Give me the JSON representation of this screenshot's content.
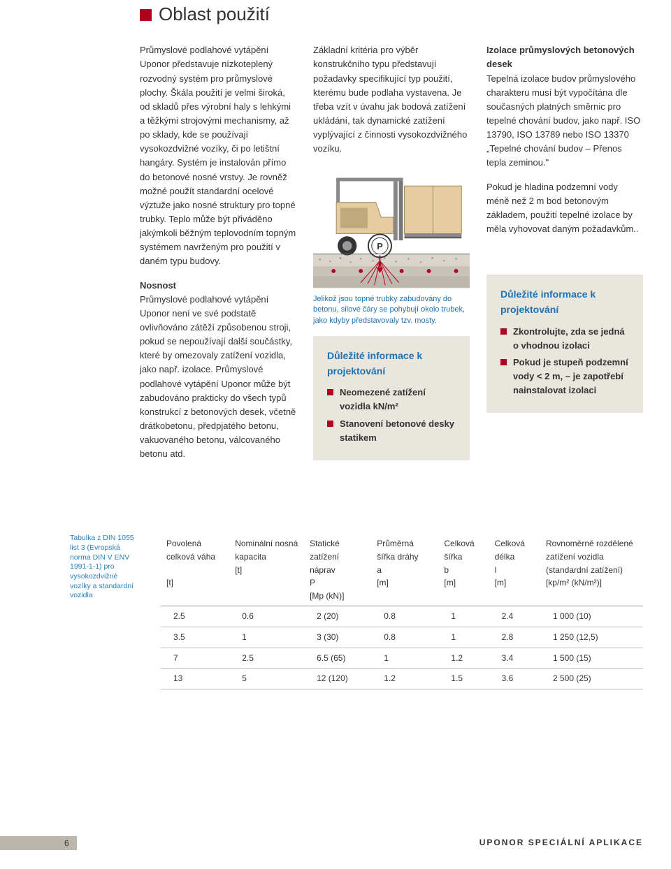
{
  "colors": {
    "accent": "#b2001f",
    "link_blue": "#1c72b3",
    "box_bg": "#e9e6de",
    "page_tab_bg": "#bcb7ac"
  },
  "header": {
    "title": "Oblast použití"
  },
  "col1": {
    "p1": "Průmyslové podlahové vytápění Uponor představuje nízkoteplený rozvodný systém pro průmyslové plochy. Škála použití je velmi široká, od skladů přes výrobní haly s lehkými a těžkými strojovými mechanismy, až po sklady, kde se používají vysokozdvižné vozíky, či po letištní hangáry. Systém je instalován přímo do betonové nosné vrstvy. Je rovněž možné použít standardní ocelové výztuže jako nosné struktury pro topné trubky. Teplo může být přiváděno jakýmkoli běžným teplovodním topným systémem navrženým pro použití v daném typu budovy.",
    "h2": "Nosnost",
    "p2": "Průmyslové podlahové vytápění Uponor není ve své podstatě ovlivňováno zátěží způsobenou stroji, pokud se nepoužívají další součástky, které by omezovaly zatížení vozidla, jako např. izolace. Průmyslové podlahové vytápění Uponor může být zabudováno prakticky do všech typů konstrukcí z betonových desek, včetně drátkobetonu, předpjatého betonu, vakuovaného betonu, válcovaného betonu atd."
  },
  "col2": {
    "p1": "Základní kritéria pro výběr konstrukčního typu představují požadavky specifikující typ použití, kterému bude podlaha vystavena. Je třeba vzít v úvahu jak bodová zatížení ukládání, tak dynamické zatížení vyplývající z činnosti vysokozdvižného vozíku.",
    "caption": "Jelikož jsou topné trubky zabudovány do betonu, silové čáry se pohybují okolo trubek, jako kdyby představovaly tzv. mosty.",
    "info_title": "Důležité informace k projektování",
    "info_items": [
      "Neomezené zatížení vozidla kN/m²",
      "Stanovení betonové desky statikem"
    ]
  },
  "col3": {
    "h1": "Izolace průmyslových betonových desek",
    "p1": "Tepelná izolace budov průmyslového charakteru musí být vypočítána dle současných platných směrnic pro tepelné chování budov, jako např. ISO 13790, ISO 13789 nebo ISO 13370 „Tepelné chování budov – Přenos tepla zeminou.\"",
    "p2": "Pokud je hladina podzemní vody méně než 2 m bod betonovým základem, použití tepelné izolace by měla vyhovovat daným požadavkům..",
    "info_title": "Důležité informace k projektování",
    "info_items": [
      "Zkontrolujte, zda se jedná o vhodnou izolaci",
      "Pokud je stupeň podzemní vody < 2 m, – je zapotřebí nainstalovat izolaci"
    ]
  },
  "figure": {
    "forklift_body": "#e6cd9f",
    "forklift_panel": "#c0aa7b",
    "pipe_color": "#b2001f",
    "ground_color": "#ddd9d0",
    "floor_line": "#999",
    "below_pattern": "#bdb8ad"
  },
  "table": {
    "note": "Tabulka z DIN 1055 list 3 (Evropská norma DIN V ENV 1991-1-1) pro vysokozdvižné vozíky a standardní vozidla",
    "columns": [
      {
        "h1": "Povolená celková váha",
        "h2": "",
        "h3": "[t]"
      },
      {
        "h1": "Nominální nosná kapacita",
        "h2": "[t]",
        "h3": ""
      },
      {
        "h1": "Statické zatížení náprav",
        "h2": "P",
        "h3": "[Mp (kN)]"
      },
      {
        "h1": "Průměrná šířka dráhy",
        "h2": "a",
        "h3": "[m]"
      },
      {
        "h1": "Celková šířka",
        "h2": "b",
        "h3": "[m]"
      },
      {
        "h1": "Celková délka",
        "h2": "l",
        "h3": "[m]"
      },
      {
        "h1": "Rovnoměrně rozdělené zatížení vozidla",
        "h2": "(standardní zatížení)",
        "h3": "[kp/m² (kN/m²)]"
      }
    ],
    "rows": [
      [
        "2.5",
        "0.6",
        "2 (20)",
        "0.8",
        "1",
        "2.4",
        "1 000 (10)"
      ],
      [
        "3.5",
        "1",
        "3 (30)",
        "0.8",
        "1",
        "2.8",
        "1 250 (12,5)"
      ],
      [
        "7",
        "2.5",
        "6.5 (65)",
        "1",
        "1.2",
        "3.4",
        "1 500 (15)"
      ],
      [
        "13",
        "5",
        "12 (120)",
        "1.2",
        "1.5",
        "3.6",
        "2 500 (25)"
      ]
    ]
  },
  "footer": {
    "page": "6",
    "right": "UPONOR SPECIÁLNÍ APLIKACE"
  }
}
